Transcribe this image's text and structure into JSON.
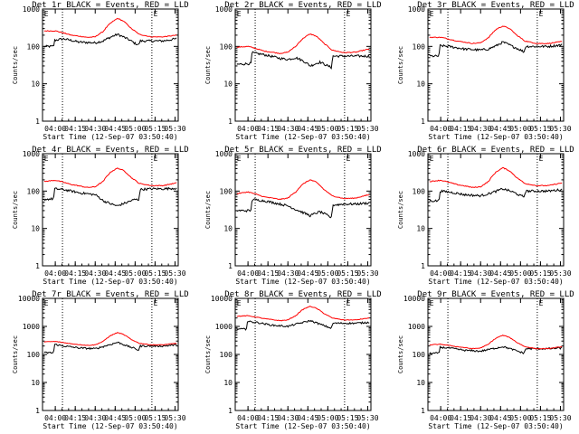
{
  "figure": {
    "xtick_labels": [
      "04:00",
      "04:15",
      "04:30",
      "04:45",
      "05:00",
      "05:15",
      "05:30"
    ],
    "xtick_hours": [
      4.0,
      4.25,
      4.5,
      4.75,
      5.0,
      5.25,
      5.5
    ],
    "xlim": [
      3.84,
      5.54
    ],
    "xlabel": "Start Time (12-Sep-07 03:50:40)",
    "ylabel": "Counts/sec",
    "corner_marks": [
      "E",
      "E"
    ],
    "corner_mark_hours": [
      3.86,
      5.23
    ],
    "vlines_hours": [
      4.09,
      5.21
    ],
    "colors": {
      "events": "#000000",
      "lld": "#ff0000",
      "axes": "#000000"
    }
  },
  "chart_data": [
    {
      "type": "line",
      "title": "Det 1r BLACK = Events, RED = LLD",
      "scale": "log",
      "ylim": [
        1,
        1000
      ],
      "ytick_labels": [
        "1",
        "10",
        "100",
        "1000"
      ],
      "grid": false,
      "series": [
        {
          "key": "events",
          "x": [
            3.86,
            3.98,
            3.99,
            4.1,
            4.3,
            4.5,
            4.6,
            4.7,
            4.78,
            4.9,
            5.0,
            5.05,
            5.06,
            5.2,
            5.35,
            5.52
          ],
          "values": [
            100,
            100,
            145,
            160,
            130,
            125,
            140,
            180,
            210,
            160,
            120,
            110,
            140,
            140,
            140,
            160
          ]
        },
        {
          "key": "lld",
          "x": [
            3.86,
            4.0,
            4.2,
            4.4,
            4.5,
            4.6,
            4.7,
            4.78,
            4.85,
            4.95,
            5.05,
            5.2,
            5.35,
            5.52
          ],
          "values": [
            260,
            260,
            200,
            175,
            180,
            250,
            430,
            560,
            480,
            300,
            210,
            180,
            180,
            200
          ]
        }
      ]
    },
    {
      "type": "line",
      "title": "Det 2r BLACK = Events, RED = LLD",
      "scale": "log",
      "ylim": [
        1,
        1000
      ],
      "ytick_labels": [
        "1",
        "10",
        "100",
        "1000"
      ],
      "grid": false,
      "series": [
        {
          "key": "events",
          "x": [
            3.86,
            4.04,
            4.05,
            4.2,
            4.4,
            4.5,
            4.6,
            4.7,
            4.78,
            4.9,
            5.0,
            5.05,
            5.06,
            5.2,
            5.35,
            5.52
          ],
          "values": [
            33,
            35,
            68,
            60,
            48,
            45,
            50,
            40,
            30,
            38,
            30,
            27,
            55,
            55,
            55,
            55
          ]
        },
        {
          "key": "lld",
          "x": [
            3.86,
            4.0,
            4.2,
            4.4,
            4.5,
            4.6,
            4.7,
            4.78,
            4.85,
            4.95,
            5.05,
            5.2,
            5.35,
            5.52
          ],
          "values": [
            95,
            100,
            75,
            65,
            70,
            100,
            170,
            215,
            190,
            120,
            80,
            68,
            70,
            85
          ]
        }
      ]
    },
    {
      "type": "line",
      "title": "Det 3r BLACK = Events, RED = LLD",
      "scale": "log",
      "ylim": [
        1,
        1000
      ],
      "ytick_labels": [
        "1",
        "10",
        "100",
        "1000"
      ],
      "grid": false,
      "series": [
        {
          "key": "events",
          "x": [
            3.86,
            3.98,
            3.99,
            4.1,
            4.3,
            4.5,
            4.6,
            4.7,
            4.78,
            4.9,
            5.0,
            5.05,
            5.06,
            5.2,
            5.35,
            5.52
          ],
          "values": [
            55,
            55,
            105,
            100,
            85,
            80,
            85,
            105,
            130,
            100,
            80,
            70,
            100,
            100,
            100,
            110
          ]
        },
        {
          "key": "lld",
          "x": [
            3.86,
            4.0,
            4.2,
            4.4,
            4.5,
            4.6,
            4.7,
            4.78,
            4.85,
            4.95,
            5.05,
            5.2,
            5.35,
            5.52
          ],
          "values": [
            175,
            175,
            140,
            120,
            125,
            170,
            290,
            350,
            310,
            200,
            140,
            120,
            120,
            135
          ]
        }
      ]
    },
    {
      "type": "line",
      "title": "Det 4r BLACK = Events, RED = LLD",
      "scale": "log",
      "ylim": [
        1,
        1000
      ],
      "ytick_labels": [
        "1",
        "10",
        "100",
        "1000"
      ],
      "grid": false,
      "series": [
        {
          "key": "events",
          "x": [
            3.86,
            3.98,
            3.99,
            4.1,
            4.3,
            4.5,
            4.6,
            4.7,
            4.78,
            4.9,
            5.0,
            5.05,
            5.06,
            5.2,
            5.35,
            5.52
          ],
          "values": [
            60,
            62,
            115,
            110,
            90,
            80,
            55,
            45,
            40,
            50,
            60,
            58,
            110,
            115,
            115,
            120
          ]
        },
        {
          "key": "lld",
          "x": [
            3.86,
            4.0,
            4.2,
            4.4,
            4.5,
            4.6,
            4.7,
            4.78,
            4.85,
            4.95,
            5.05,
            5.2,
            5.35,
            5.52
          ],
          "values": [
            180,
            195,
            150,
            125,
            130,
            180,
            330,
            410,
            360,
            230,
            160,
            140,
            140,
            165
          ]
        }
      ]
    },
    {
      "type": "line",
      "title": "Det 5r BLACK = Events, RED = LLD",
      "scale": "log",
      "ylim": [
        1,
        1000
      ],
      "ytick_labels": [
        "1",
        "10",
        "100",
        "1000"
      ],
      "grid": false,
      "series": [
        {
          "key": "events",
          "x": [
            3.86,
            4.04,
            4.05,
            4.2,
            4.4,
            4.5,
            4.6,
            4.7,
            4.78,
            4.9,
            5.0,
            5.05,
            5.06,
            5.2,
            5.35,
            5.52
          ],
          "values": [
            30,
            30,
            60,
            55,
            45,
            40,
            32,
            26,
            22,
            28,
            22,
            19,
            42,
            45,
            45,
            48
          ]
        },
        {
          "key": "lld",
          "x": [
            3.86,
            4.0,
            4.2,
            4.4,
            4.5,
            4.6,
            4.7,
            4.78,
            4.85,
            4.95,
            5.05,
            5.2,
            5.35,
            5.52
          ],
          "values": [
            85,
            95,
            70,
            60,
            65,
            95,
            160,
            200,
            175,
            110,
            75,
            63,
            65,
            80
          ]
        }
      ]
    },
    {
      "type": "line",
      "title": "Det 6r BLACK = Events, RED = LLD",
      "scale": "log",
      "ylim": [
        1,
        1000
      ],
      "ytick_labels": [
        "1",
        "10",
        "100",
        "1000"
      ],
      "grid": false,
      "series": [
        {
          "key": "events",
          "x": [
            3.86,
            3.98,
            3.99,
            4.1,
            4.3,
            4.5,
            4.6,
            4.7,
            4.78,
            4.9,
            5.0,
            5.05,
            5.06,
            5.2,
            5.35,
            5.52
          ],
          "values": [
            55,
            55,
            100,
            95,
            80,
            75,
            85,
            100,
            115,
            95,
            75,
            70,
            100,
            100,
            100,
            110
          ]
        },
        {
          "key": "lld",
          "x": [
            3.86,
            4.0,
            4.2,
            4.4,
            4.5,
            4.6,
            4.7,
            4.78,
            4.85,
            4.95,
            5.05,
            5.2,
            5.35,
            5.52
          ],
          "values": [
            180,
            195,
            150,
            125,
            130,
            180,
            330,
            420,
            360,
            230,
            160,
            140,
            140,
            165
          ]
        }
      ]
    },
    {
      "type": "line",
      "title": "Det 7r BLACK = Events, RED = LLD",
      "scale": "log",
      "ylim": [
        1,
        10000
      ],
      "ytick_labels": [
        "1",
        "10",
        "100",
        "1000",
        "10000"
      ],
      "grid": false,
      "series": [
        {
          "key": "events",
          "x": [
            3.86,
            3.98,
            3.99,
            4.1,
            4.3,
            4.5,
            4.6,
            4.7,
            4.78,
            4.9,
            5.0,
            5.05,
            5.06,
            5.2,
            5.35,
            5.52
          ],
          "values": [
            115,
            115,
            230,
            200,
            170,
            160,
            190,
            230,
            270,
            200,
            160,
            140,
            200,
            200,
            200,
            220
          ]
        },
        {
          "key": "lld",
          "x": [
            3.86,
            4.0,
            4.2,
            4.4,
            4.5,
            4.6,
            4.7,
            4.78,
            4.85,
            4.95,
            5.05,
            5.2,
            5.35,
            5.52
          ],
          "values": [
            280,
            290,
            240,
            210,
            220,
            290,
            480,
            600,
            520,
            340,
            250,
            220,
            220,
            250
          ]
        }
      ]
    },
    {
      "type": "line",
      "title": "Det 8r BLACK = Events, RED = LLD",
      "scale": "log",
      "ylim": [
        1,
        10000
      ],
      "ytick_labels": [
        "1",
        "10",
        "100",
        "1000",
        "10000"
      ],
      "grid": false,
      "series": [
        {
          "key": "events",
          "x": [
            3.86,
            3.98,
            3.99,
            4.1,
            4.3,
            4.5,
            4.6,
            4.7,
            4.78,
            4.9,
            5.0,
            5.05,
            5.06,
            5.2,
            5.35,
            5.52
          ],
          "values": [
            800,
            800,
            1500,
            1400,
            1100,
            1000,
            1200,
            1400,
            1600,
            1200,
            950,
            850,
            1300,
            1300,
            1300,
            1400
          ]
        },
        {
          "key": "lld",
          "x": [
            3.86,
            4.0,
            4.2,
            4.4,
            4.5,
            4.6,
            4.7,
            4.78,
            4.85,
            4.95,
            5.05,
            5.2,
            5.35,
            5.52
          ],
          "values": [
            2300,
            2400,
            1900,
            1600,
            1700,
            2400,
            4200,
            5200,
            4500,
            2900,
            2000,
            1700,
            1700,
            2000
          ]
        }
      ]
    },
    {
      "type": "line",
      "title": "Det 9r BLACK = Events, RED = LLD",
      "scale": "log",
      "ylim": [
        1,
        10000
      ],
      "ytick_labels": [
        "1",
        "10",
        "100",
        "1000",
        "10000"
      ],
      "grid": false,
      "series": [
        {
          "key": "events",
          "x": [
            3.86,
            3.98,
            3.99,
            4.1,
            4.3,
            4.5,
            4.6,
            4.7,
            4.78,
            4.9,
            5.0,
            5.05,
            5.06,
            5.2,
            5.35,
            5.52
          ],
          "values": [
            110,
            110,
            180,
            170,
            140,
            130,
            150,
            170,
            190,
            150,
            120,
            110,
            160,
            160,
            160,
            170
          ]
        },
        {
          "key": "lld",
          "x": [
            3.86,
            4.0,
            4.2,
            4.4,
            4.5,
            4.6,
            4.7,
            4.78,
            4.85,
            4.95,
            5.05,
            5.2,
            5.35,
            5.52
          ],
          "values": [
            220,
            230,
            190,
            160,
            170,
            230,
            390,
            480,
            420,
            270,
            190,
            160,
            160,
            190
          ]
        }
      ]
    }
  ]
}
